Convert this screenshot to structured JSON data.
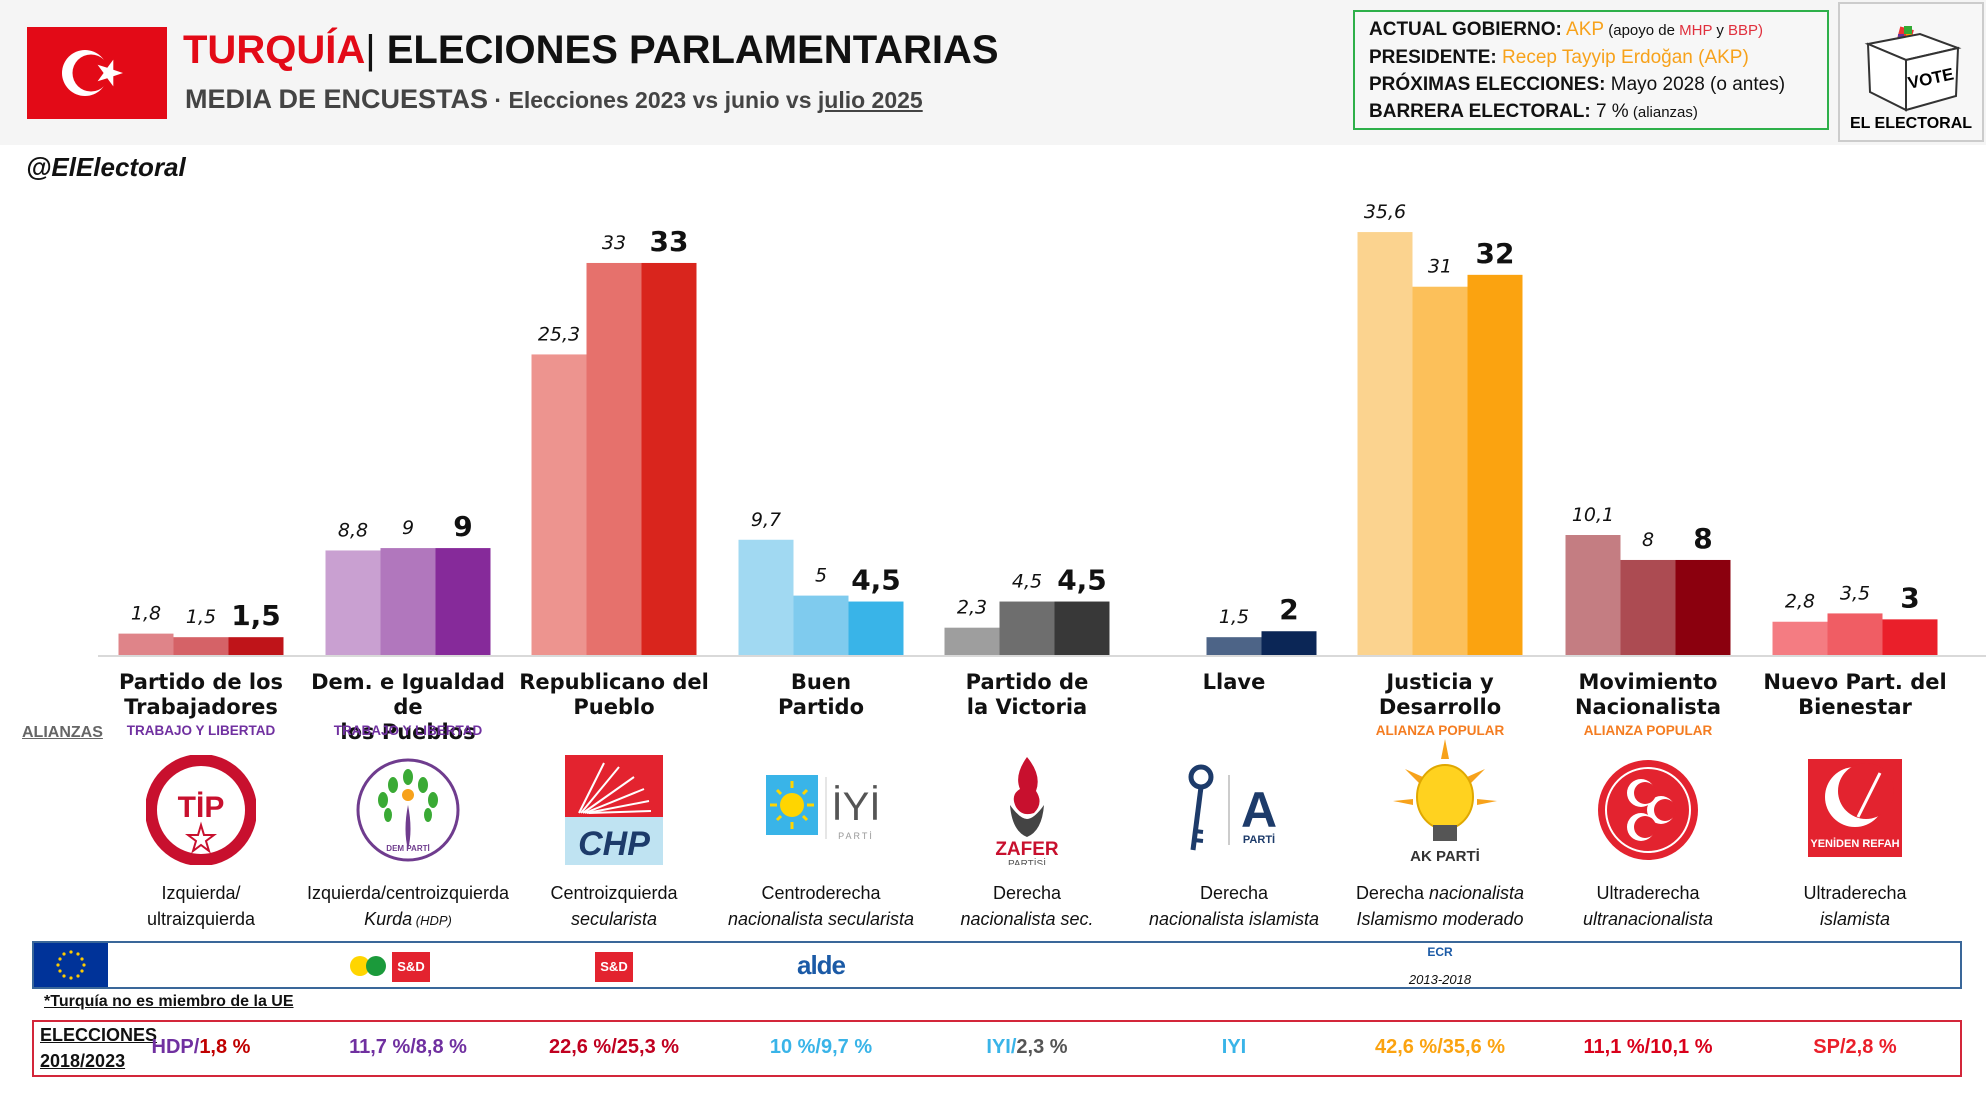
{
  "header": {
    "country": "TURQUÍA",
    "separator": "|",
    "title": "ELECIONES PARLAMENTARIAS",
    "subtitle_main": "MEDIA DE ENCUESTAS",
    "subtitle_dot": " · ",
    "subtitle_part1": "Elecciones 2023 vs junio vs ",
    "subtitle_part2": "julio 2025",
    "handle": "@ElElectoral"
  },
  "infobox": {
    "gov_label": "ACTUAL GOBIERNO:",
    "gov_value": "AKP",
    "gov_support_pre": " (apoyo de ",
    "gov_support_1": "MHP",
    "gov_support_mid": " y ",
    "gov_support_2": "BBP)",
    "president_label": "PRESIDENTE:",
    "president_value": "Recep Tayyip Erdoğan (AKP)",
    "next_label": "PRÓXIMAS ELECCIONES:",
    "next_value": "Mayo 2028 (o antes)",
    "barrier_label": "BARRERA ELECTORAL:",
    "barrier_value": "7 %",
    "barrier_note": " (alianzas)"
  },
  "brand": {
    "vote_text": "VOTE",
    "name": "EL ELECTORAL"
  },
  "alianzas_label": "ALIANZAS",
  "chart_data": {
    "type": "bar",
    "title": "TURQUÍA | ELECIONES PARLAMENTARIAS — MEDIA DE ENCUESTAS · Elecciones 2023 vs junio vs julio 2025",
    "xlabel": "",
    "ylabel": "",
    "ylim": [
      0,
      36
    ],
    "grid": false,
    "series_names": [
      "Elecciones 2023",
      "junio 2025",
      "julio 2025"
    ],
    "categories": [
      "Partido de los Trabajadores",
      "Dem. e Igualdad de los Pueblos",
      "Republicano del Pueblo",
      "Buen Partido",
      "Partido de la Victoria",
      "Llave",
      "Justicia y Desarrollo",
      "Movimiento Nacionalista",
      "Nuevo Part. del Bienestar"
    ],
    "series": [
      {
        "name": "Elecciones 2023",
        "values": [
          1.8,
          8.8,
          25.3,
          9.7,
          2.3,
          null,
          35.6,
          10.1,
          2.8
        ],
        "labels": [
          "1,8",
          "8,8",
          "25,3",
          "9,7",
          "2,3",
          "",
          "35,6",
          "10,1",
          "2,8"
        ]
      },
      {
        "name": "junio 2025",
        "values": [
          1.5,
          9,
          33,
          5,
          4.5,
          1.5,
          31,
          8,
          3.5
        ],
        "labels": [
          "1,5",
          "9",
          "33",
          "5",
          "4,5",
          "1,5",
          "31",
          "8",
          "3,5"
        ]
      },
      {
        "name": "julio 2025",
        "values": [
          1.5,
          9,
          33,
          4.5,
          4.5,
          2,
          32,
          8,
          3
        ],
        "labels": [
          "1,5",
          "9",
          "33",
          "4,5",
          "4,5",
          "2",
          "32",
          "8",
          "3"
        ]
      }
    ],
    "colors": [
      [
        "#df8489",
        "#d56267",
        "#bf1419"
      ],
      [
        "#c9a0d1",
        "#b177bd",
        "#862a9a"
      ],
      [
        "#ed948f",
        "#e6716c",
        "#d9251d"
      ],
      [
        "#a1d9f2",
        "#7fcbee",
        "#39b4e8"
      ],
      [
        "#9e9e9e",
        "#6e6e6e",
        "#383838"
      ],
      [
        null,
        "#4d6487",
        "#0b2656"
      ],
      [
        "#fbd38f",
        "#fcc05a",
        "#fba310"
      ],
      [
        "#c47d82",
        "#ac4b52",
        "#8b000e"
      ],
      [
        "#f47c82",
        "#f05d64",
        "#ea1f2a"
      ]
    ]
  },
  "parties": [
    {
      "name_l1": "Partido de los",
      "name_l2": "Trabajadores",
      "alliance": "TRABAJO Y LIBERTAD",
      "alliance_color": "#7030a0",
      "logo": "tip-logo",
      "logo_text": "TİP",
      "ideo_l1": "Izquierda/",
      "ideo_l2": "ultraizquierda",
      "ideo_l2_italic": false,
      "eu": [],
      "elec": [
        {
          "t": "HDP/",
          "c": "#7030a0"
        },
        {
          "t": "1,8 %",
          "c": "#c00000"
        }
      ]
    },
    {
      "name_l1": "Dem. e Igualdad de",
      "name_l2": "los Pueblos",
      "alliance": "TRABAJO Y LIBERTAD",
      "alliance_color": "#7030a0",
      "logo": "dem-parti-logo",
      "logo_text": "DEM PARTİ",
      "ideo_l1": "Izquierda/centroizquierda",
      "ideo_l2": "Kurda",
      "ideo_l2_note": " (HDP)",
      "ideo_l2_italic": true,
      "eu": [
        "Greens/EFA",
        "S&D"
      ],
      "elec": [
        {
          "t": "11,7 %/8,8 %",
          "c": "#7030a0"
        }
      ]
    },
    {
      "name_l1": "Republicano del",
      "name_l2": "Pueblo",
      "alliance": "",
      "alliance_color": "#7030a0",
      "logo": "chp-logo",
      "logo_text": "CHP",
      "ideo_l1": "Centroizquierda",
      "ideo_l2": "secularista",
      "ideo_l2_italic": true,
      "eu": [
        "S&D"
      ],
      "elec": [
        {
          "t": "22,6 %/25,3 %",
          "c": "#c00020"
        }
      ]
    },
    {
      "name_l1": "Buen",
      "name_l2": "Partido",
      "alliance": "",
      "alliance_color": "#7030a0",
      "logo": "iyi-logo",
      "logo_text": "İYİ",
      "logo_sub": "PARTİ",
      "ideo_l1": "Centroderecha",
      "ideo_l2": "nacionalista secularista",
      "ideo_l2_italic": true,
      "eu": [
        "alde"
      ],
      "elec": [
        {
          "t": "10 %/9,7 %",
          "c": "#39b4e8"
        }
      ]
    },
    {
      "name_l1": "Partido de",
      "name_l2": "la Victoria",
      "alliance": "",
      "alliance_color": "#7030a0",
      "logo": "zafer-logo",
      "logo_text": "ZAFER",
      "logo_sub": "PARTİSİ",
      "ideo_l1": "Derecha",
      "ideo_l2": "nacionalista sec.",
      "ideo_l2_italic": true,
      "eu": [],
      "elec": [
        {
          "t": "IYI/",
          "c": "#39b4e8"
        },
        {
          "t": "2,3 %",
          "c": "#555555"
        }
      ]
    },
    {
      "name_l1": "Llave",
      "name_l2": "",
      "alliance": "",
      "alliance_color": "#7030a0",
      "logo": "a-parti-logo",
      "logo_text": "A",
      "logo_sub": "PARTİ",
      "ideo_l1": "Derecha",
      "ideo_l2": "nacionalista islamista",
      "ideo_l2_italic": true,
      "eu": [],
      "elec": [
        {
          "t": "IYI",
          "c": "#39b4e8"
        }
      ]
    },
    {
      "name_l1": "Justicia y",
      "name_l2": "Desarrollo",
      "alliance": "ALIANZA POPULAR",
      "alliance_color": "#f47c20",
      "logo": "ak-parti-logo",
      "logo_text": "AK PARTİ",
      "ideo_l1": "Derecha",
      "ideo_l1_italic_suffix": " nacionalista",
      "ideo_l2": "Islamismo moderado",
      "ideo_l2_italic": true,
      "eu": [
        "ECR"
      ],
      "eu_note": "2013-2018",
      "elec": [
        {
          "t": "42,6 %/35,6 %",
          "c": "#fba310"
        }
      ]
    },
    {
      "name_l1": "Movimiento",
      "name_l2": "Nacionalista",
      "alliance": "ALIANZA POPULAR",
      "alliance_color": "#f47c20",
      "logo": "mhp-logo",
      "logo_text": "",
      "ideo_l1": "Ultraderecha",
      "ideo_l2": "ultranacionalista",
      "ideo_l2_italic": true,
      "eu": [],
      "elec": [
        {
          "t": "11,1 %/10,1 %",
          "c": "#d9001b"
        }
      ]
    },
    {
      "name_l1": "Nuevo Part. del",
      "name_l2": "Bienestar",
      "alliance": "",
      "alliance_color": "#7030a0",
      "logo": "yeniden-refah-logo",
      "logo_text": "YENİDEN REFAH",
      "ideo_l1": "Ultraderecha",
      "ideo_l2": "islamista",
      "ideo_l2_italic": true,
      "eu": [],
      "elec": [
        {
          "t": "SP/2,8 %",
          "c": "#ea1f2a"
        }
      ]
    }
  ],
  "eu_note": "*Turquía no es miembro de la UE",
  "elections_label_l1": "ELECCIONES",
  "elections_label_l2": "2018/2023"
}
